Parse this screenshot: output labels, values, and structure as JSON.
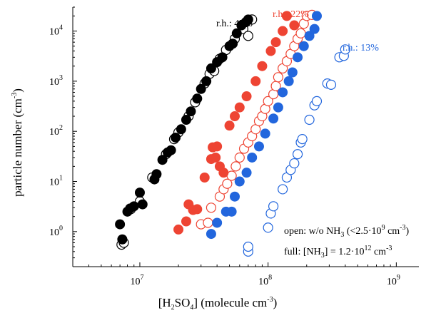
{
  "chart_data": {
    "type": "scatter",
    "x_scale": "log",
    "y_scale": "log",
    "xlim": [
      3000000.0,
      1500000000.0
    ],
    "ylim": [
      0.2,
      30000
    ],
    "xlabel": {
      "parts": [
        "[H",
        "2",
        "SO",
        "4",
        "]  (molecule cm",
        "-3",
        ")"
      ]
    },
    "ylabel": {
      "parts": [
        "particle number (cm",
        "-3",
        ")"
      ]
    },
    "x_ticks": [
      {
        "value": 10000000.0,
        "base": "10",
        "exp": "7"
      },
      {
        "value": 100000000.0,
        "base": "10",
        "exp": "8"
      },
      {
        "value": 1000000000.0,
        "base": "10",
        "exp": "9"
      }
    ],
    "y_ticks": [
      {
        "value": 1,
        "base": "10",
        "exp": "0"
      },
      {
        "value": 10,
        "base": "10",
        "exp": "1"
      },
      {
        "value": 100,
        "base": "10",
        "exp": "2"
      },
      {
        "value": 1000,
        "base": "10",
        "exp": "3"
      },
      {
        "value": 10000,
        "base": "10",
        "exp": "4"
      }
    ],
    "series": [
      {
        "name": "r.h.: 47%",
        "color": "#000000",
        "filled": [
          [
            7000000.0,
            1.4
          ],
          [
            7300000.0,
            0.7
          ],
          [
            8000000.0,
            2.5
          ],
          [
            8400000.0,
            2.9
          ],
          [
            9000000.0,
            3.2
          ],
          [
            10000000.0,
            6.0
          ],
          [
            10500000.0,
            3.5
          ],
          [
            13000000.0,
            11
          ],
          [
            13500000.0,
            14
          ],
          [
            15000000.0,
            27
          ],
          [
            16500000.0,
            38
          ],
          [
            17500000.0,
            42
          ],
          [
            19000000.0,
            75
          ],
          [
            21000000.0,
            110
          ],
          [
            23000000.0,
            170
          ],
          [
            25000000.0,
            250
          ],
          [
            28000000.0,
            450
          ],
          [
            30000000.0,
            700
          ],
          [
            33000000.0,
            1000
          ],
          [
            36000000.0,
            1800
          ],
          [
            40000000.0,
            2400
          ],
          [
            44000000.0,
            3000
          ],
          [
            50000000.0,
            5000
          ],
          [
            53000000.0,
            5600
          ],
          [
            57000000.0,
            9000
          ],
          [
            62000000.0,
            13000
          ],
          [
            67000000.0,
            15000
          ],
          [
            70000000.0,
            17000
          ]
        ],
        "open": [
          [
            7200000.0,
            0.55
          ],
          [
            7500000.0,
            0.6
          ],
          [
            8500000.0,
            2.8
          ],
          [
            10000000.0,
            4.0
          ],
          [
            12500000.0,
            12
          ],
          [
            16000000.0,
            35
          ],
          [
            18500000.0,
            70
          ],
          [
            20000000.0,
            95
          ],
          [
            24000000.0,
            200
          ],
          [
            27000000.0,
            380
          ],
          [
            32000000.0,
            900
          ],
          [
            35000000.0,
            1400
          ],
          [
            38000000.0,
            1600
          ],
          [
            42000000.0,
            2800
          ],
          [
            47000000.0,
            4200
          ],
          [
            55000000.0,
            7000
          ],
          [
            64000000.0,
            11000
          ],
          [
            70000000.0,
            8000
          ],
          [
            75000000.0,
            17000
          ]
        ]
      },
      {
        "name": "r.h.: 22%",
        "color": "#ee4433",
        "filled": [
          [
            20000000.0,
            1.1
          ],
          [
            23000000.0,
            1.6
          ],
          [
            24000000.0,
            3.5
          ],
          [
            26000000.0,
            2.7
          ],
          [
            28000000.0,
            2.8
          ],
          [
            32000000.0,
            12
          ],
          [
            36000000.0,
            28
          ],
          [
            37000000.0,
            48
          ],
          [
            39000000.0,
            30
          ],
          [
            40000000.0,
            50
          ],
          [
            42000000.0,
            20
          ],
          [
            45000000.0,
            15
          ],
          [
            50000000.0,
            130
          ],
          [
            55000000.0,
            200
          ],
          [
            60000000.0,
            300
          ],
          [
            68000000.0,
            500
          ],
          [
            80000000.0,
            1000
          ],
          [
            90000000.0,
            2000
          ],
          [
            105000000.0,
            4000
          ],
          [
            115000000.0,
            6000
          ],
          [
            130000000.0,
            10000
          ],
          [
            140000000.0,
            20000
          ],
          [
            160000000.0,
            13000
          ]
        ],
        "open": [
          [
            30000000.0,
            1.4
          ],
          [
            34000000.0,
            1.5
          ],
          [
            36000000.0,
            3.0
          ],
          [
            42000000.0,
            5.0
          ],
          [
            45000000.0,
            7.0
          ],
          [
            48000000.0,
            9.0
          ],
          [
            52000000.0,
            13
          ],
          [
            56000000.0,
            20
          ],
          [
            60000000.0,
            30
          ],
          [
            65000000.0,
            45
          ],
          [
            70000000.0,
            60
          ],
          [
            75000000.0,
            80
          ],
          [
            80000000.0,
            110
          ],
          [
            85000000.0,
            160
          ],
          [
            90000000.0,
            200
          ],
          [
            95000000.0,
            280
          ],
          [
            100000000.0,
            400
          ],
          [
            110000000.0,
            550
          ],
          [
            115000000.0,
            800
          ],
          [
            120000000.0,
            1200
          ],
          [
            130000000.0,
            1800
          ],
          [
            140000000.0,
            2500
          ],
          [
            150000000.0,
            3500
          ],
          [
            160000000.0,
            5000
          ],
          [
            170000000.0,
            7000
          ],
          [
            180000000.0,
            9000
          ],
          [
            190000000.0,
            14000
          ],
          [
            200000000.0,
            20000
          ],
          [
            220000000.0,
            21000
          ]
        ]
      },
      {
        "name": "r.h.: 13%",
        "color": "#2266dd",
        "filled": [
          [
            36000000.0,
            0.9
          ],
          [
            40000000.0,
            1.5
          ],
          [
            47000000.0,
            2.5
          ],
          [
            52000000.0,
            2.5
          ],
          [
            55000000.0,
            5.0
          ],
          [
            60000000.0,
            10
          ],
          [
            68000000.0,
            15
          ],
          [
            75000000.0,
            30
          ],
          [
            85000000.0,
            50
          ],
          [
            95000000.0,
            90
          ],
          [
            110000000.0,
            180
          ],
          [
            120000000.0,
            300
          ],
          [
            130000000.0,
            600
          ],
          [
            145000000.0,
            1000
          ],
          [
            155000000.0,
            1500
          ],
          [
            170000000.0,
            3000
          ],
          [
            190000000.0,
            5000
          ],
          [
            210000000.0,
            8000
          ],
          [
            230000000.0,
            11000
          ],
          [
            240000000.0,
            20000
          ]
        ],
        "open": [
          [
            70000000.0,
            0.4
          ],
          [
            70000000.0,
            0.5
          ],
          [
            100000000.0,
            1.2
          ],
          [
            105000000.0,
            2.3
          ],
          [
            110000000.0,
            3.2
          ],
          [
            130000000.0,
            7.0
          ],
          [
            140000000.0,
            12
          ],
          [
            150000000.0,
            17
          ],
          [
            160000000.0,
            23
          ],
          [
            170000000.0,
            35
          ],
          [
            180000000.0,
            60
          ],
          [
            185000000.0,
            70
          ],
          [
            210000000.0,
            170
          ],
          [
            230000000.0,
            330
          ],
          [
            240000000.0,
            400
          ],
          [
            290000000.0,
            900
          ],
          [
            310000000.0,
            850
          ],
          [
            360000000.0,
            3000
          ],
          [
            390000000.0,
            3200
          ],
          [
            400000000.0,
            4300
          ]
        ]
      }
    ],
    "annotations": {
      "rh47": {
        "label": "r.h.: 47%"
      },
      "rh22": {
        "label": "r.h.: 22%"
      },
      "rh13": {
        "label": "r.h.: 13%"
      },
      "open_note": {
        "parts": [
          "open: w/o NH",
          "3",
          " (<2.5·10",
          "9",
          " cm",
          "-3",
          ")"
        ]
      },
      "full_note": {
        "parts": [
          "full: [NH",
          "3",
          "] = 1.2·10",
          "12",
          " cm",
          "-3"
        ]
      }
    }
  }
}
